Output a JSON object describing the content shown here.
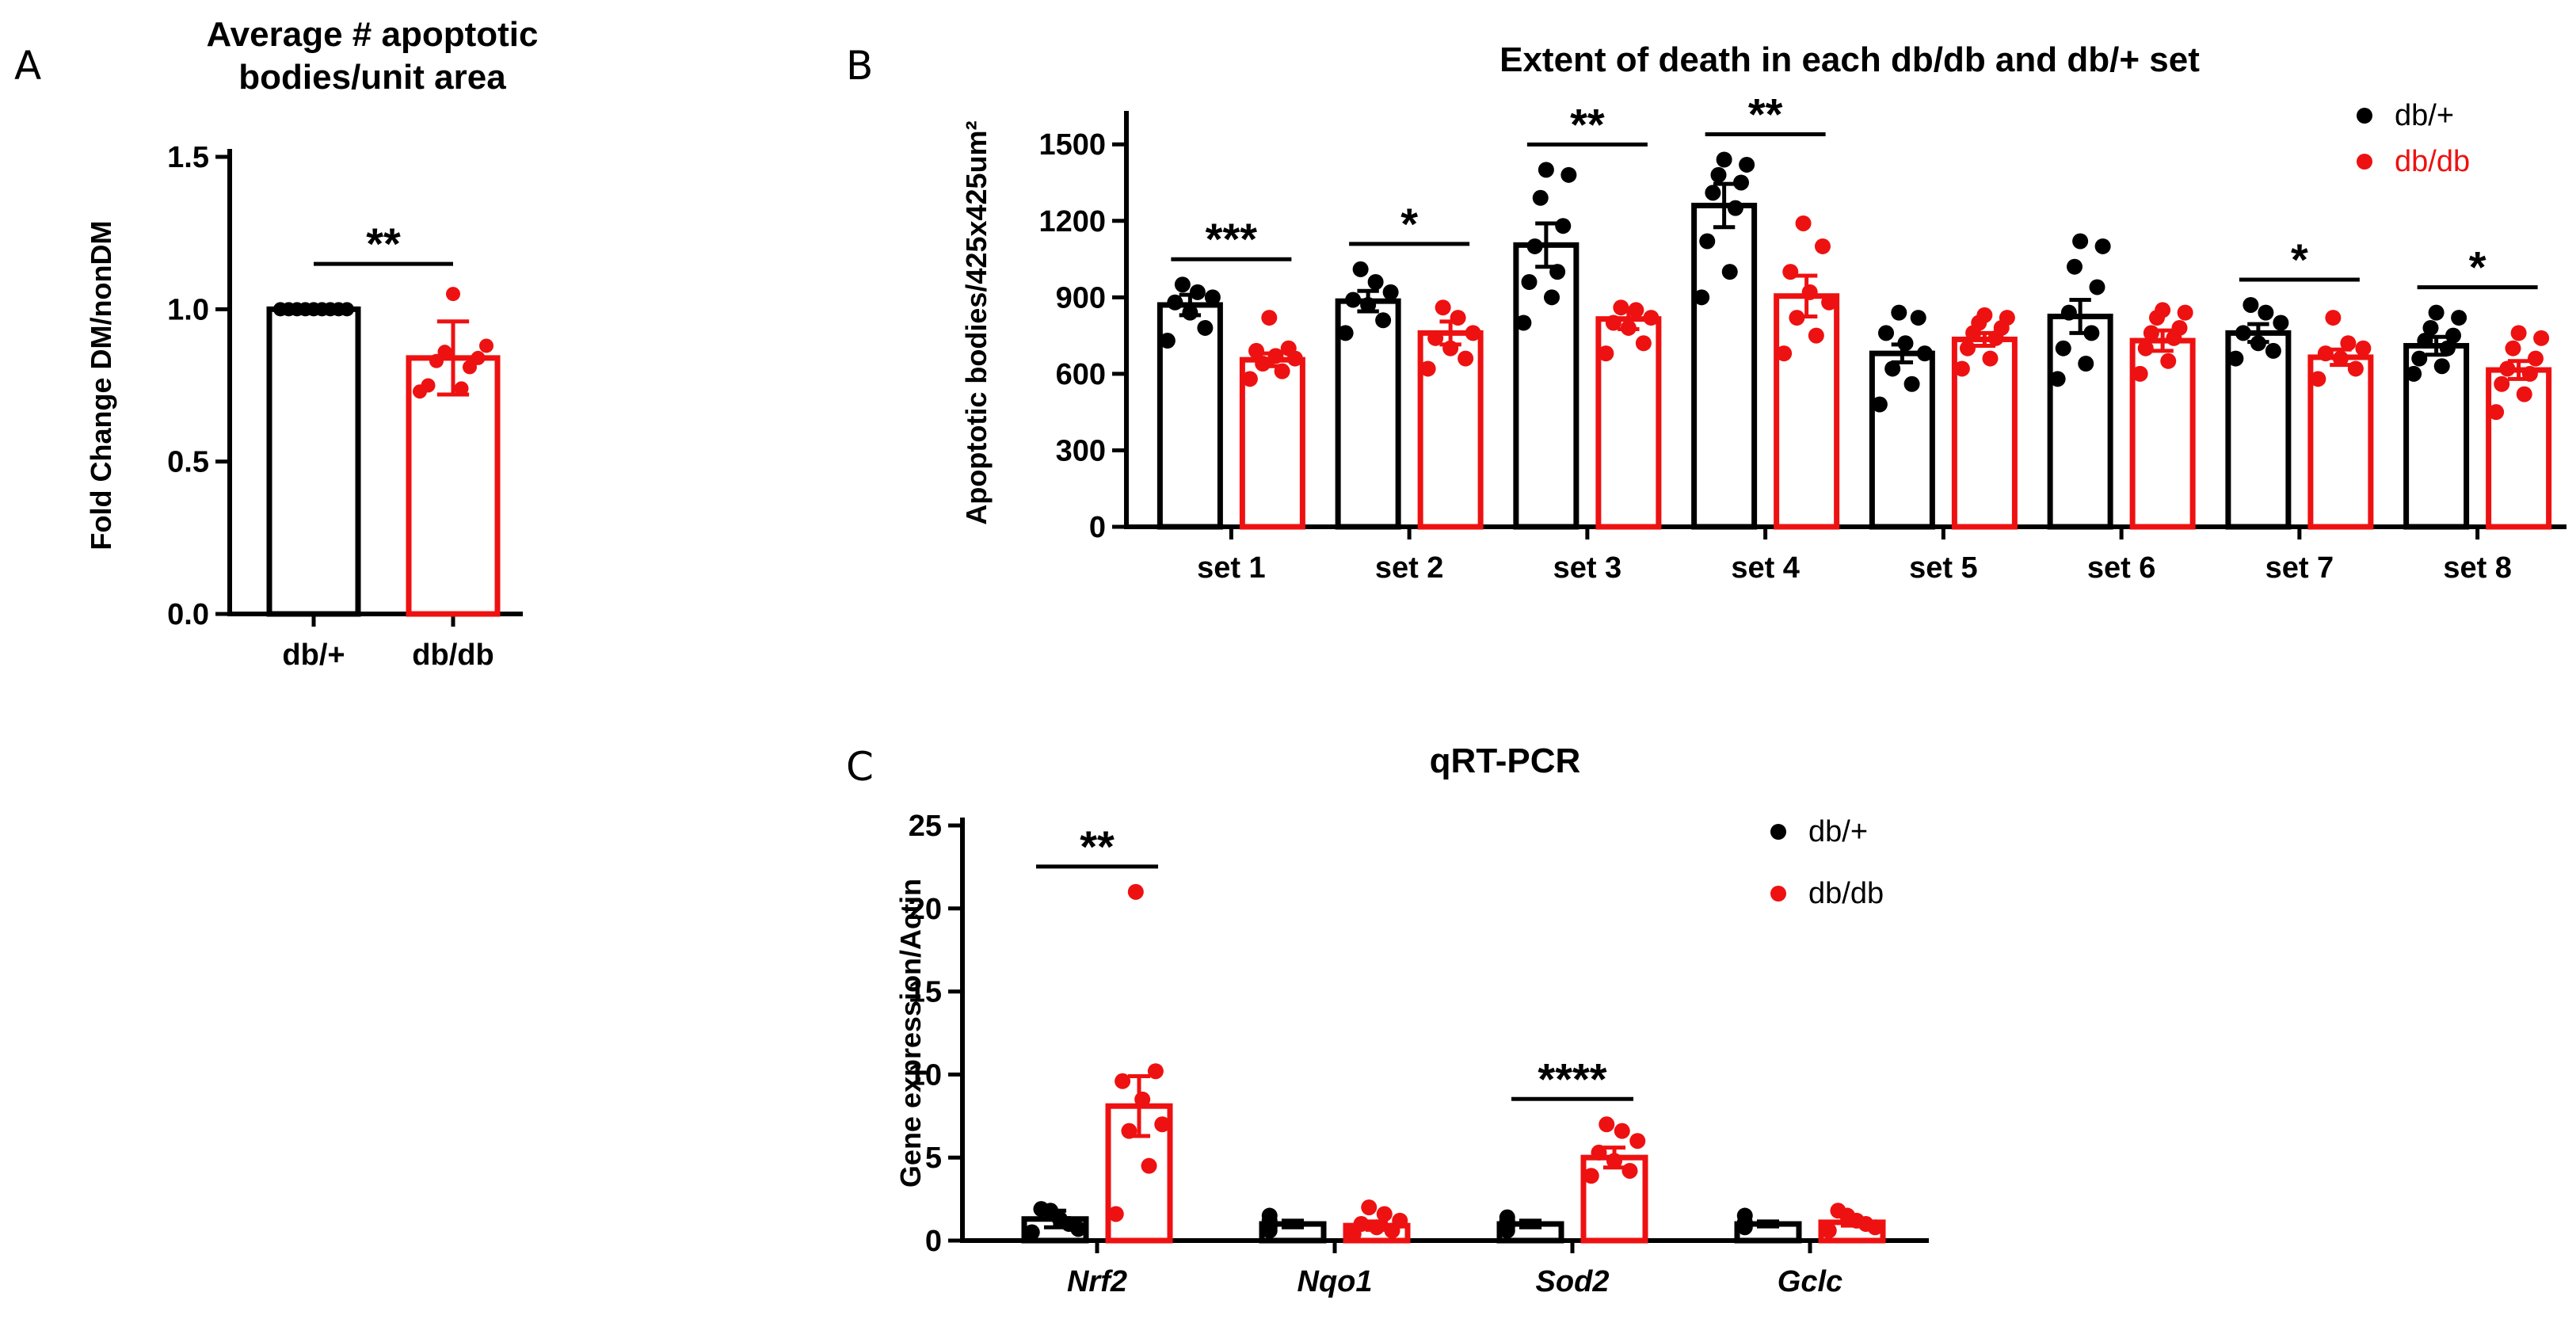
{
  "colors": {
    "db_plus": "#000000",
    "db_db": "#ee1111",
    "ylabel_gray": "#555555"
  },
  "panels": {
    "a": "A",
    "b": "B",
    "c": "C"
  },
  "chart_data": [
    {
      "id": "A",
      "type": "bar",
      "title_lines": [
        "Average # apoptotic",
        "bodies/unit area"
      ],
      "ylabel": "Fold Change DM/nonDM",
      "ylim": [
        0,
        1.5
      ],
      "yticks": [
        "0.0",
        "0.5",
        "1.0",
        "1.5"
      ],
      "categories": [
        "db/+",
        "db/db"
      ],
      "values": [
        1.0,
        0.84
      ],
      "errors": [
        0.0,
        0.12
      ],
      "points": [
        [
          1,
          1,
          1,
          1,
          1,
          1,
          1,
          1,
          1
        ],
        [
          0.73,
          0.74,
          0.75,
          0.81,
          0.83,
          0.84,
          0.86,
          0.88,
          1.05
        ]
      ],
      "significance": [
        {
          "label": "**",
          "from": 0,
          "to": 1
        }
      ]
    },
    {
      "id": "B",
      "type": "bar",
      "title": "Extent of death in each db/db and db/+ set",
      "ylabel": "Apoptotic bodies/425x425um²",
      "ylim": [
        0,
        1600
      ],
      "yticks": [
        "0",
        "300",
        "600",
        "900",
        "1200",
        "1500"
      ],
      "categories": [
        "set 1",
        "set 2",
        "set 3",
        "set 4",
        "set 5",
        "set 6",
        "set 7",
        "set 8"
      ],
      "series": [
        {
          "name": "db/+",
          "values": [
            870,
            885,
            1105,
            1260,
            680,
            825,
            760,
            710
          ],
          "errors": [
            40,
            40,
            85,
            85,
            35,
            65,
            35,
            35
          ],
          "points": [
            [
              730,
              780,
              840,
              880,
              900,
              920,
              950
            ],
            [
              760,
              810,
              870,
              890,
              920,
              960,
              1010
            ],
            [
              800,
              900,
              960,
              1000,
              1100,
              1180,
              1290,
              1380,
              1400
            ],
            [
              900,
              1000,
              1120,
              1250,
              1310,
              1350,
              1380,
              1420,
              1440
            ],
            [
              480,
              560,
              620,
              680,
              720,
              760,
              820,
              840
            ],
            [
              580,
              640,
              700,
              760,
              840,
              940,
              1020,
              1100,
              1120
            ],
            [
              660,
              690,
              720,
              760,
              800,
              840,
              870
            ],
            [
              600,
              630,
              660,
              700,
              730,
              750,
              780,
              820,
              840
            ]
          ]
        },
        {
          "name": "db/db",
          "values": [
            655,
            760,
            815,
            905,
            735,
            730,
            665,
            615
          ],
          "errors": [
            25,
            45,
            40,
            80,
            25,
            40,
            30,
            35
          ],
          "points": [
            [
              580,
              610,
              640,
              660,
              670,
              690,
              700,
              820
            ],
            [
              620,
              660,
              700,
              740,
              760,
              820,
              860
            ],
            [
              680,
              720,
              780,
              800,
              820,
              850,
              860
            ],
            [
              680,
              750,
              820,
              880,
              920,
              1000,
              1100,
              1190
            ],
            [
              620,
              660,
              700,
              740,
              760,
              780,
              800,
              820,
              830
            ],
            [
              600,
              650,
              700,
              740,
              760,
              780,
              820,
              840,
              850
            ],
            [
              580,
              620,
              660,
              680,
              700,
              720,
              820
            ],
            [
              450,
              520,
              560,
              600,
              620,
              660,
              700,
              740,
              760
            ]
          ]
        }
      ],
      "significance": [
        {
          "label": "***",
          "category": 0
        },
        {
          "label": "*",
          "category": 1
        },
        {
          "label": "**",
          "category": 2
        },
        {
          "label": "**",
          "category": 3
        },
        {
          "label": "*",
          "category": 6
        },
        {
          "label": "*",
          "category": 7
        }
      ],
      "legend": [
        "db/+",
        "db/db"
      ]
    },
    {
      "id": "C",
      "type": "bar",
      "title": "qRT-PCR",
      "ylabel": "Gene expression/Actin",
      "ylim": [
        0,
        25
      ],
      "yticks": [
        "0",
        "5",
        "10",
        "15",
        "20",
        "25"
      ],
      "categories": [
        "Nrf2",
        "Nqo1",
        "Sod2",
        "Gclc"
      ],
      "series": [
        {
          "name": "db/+",
          "values": [
            1.3,
            1.0,
            1.0,
            1.0
          ],
          "errors": [
            0.5,
            0.2,
            0.2,
            0.15
          ],
          "points": [
            [
              0.5,
              0.7,
              1.0,
              1.3,
              1.8,
              1.9
            ],
            [
              0.6,
              0.8,
              1.0,
              1.2,
              1.5
            ],
            [
              0.6,
              0.8,
              1.0,
              1.2,
              1.4
            ],
            [
              0.8,
              0.9,
              1.0,
              1.1,
              1.5
            ]
          ]
        },
        {
          "name": "db/db",
          "values": [
            8.1,
            0.9,
            5.0,
            1.1
          ],
          "errors": [
            1.8,
            0.25,
            0.6,
            0.2
          ],
          "points": [
            [
              1.6,
              4.5,
              6.6,
              7.0,
              8.5,
              9.6,
              10.2,
              21.0
            ],
            [
              0.4,
              0.6,
              0.8,
              1.0,
              1.2,
              1.6,
              2.0
            ],
            [
              3.9,
              4.2,
              4.8,
              5.3,
              6.0,
              6.6,
              7.0
            ],
            [
              0.6,
              0.8,
              1.0,
              1.2,
              1.5,
              1.8
            ]
          ]
        }
      ],
      "significance": [
        {
          "label": "**",
          "category": 0
        },
        {
          "label": "****",
          "category": 2
        }
      ],
      "legend": [
        "db/+",
        "db/db"
      ]
    }
  ]
}
